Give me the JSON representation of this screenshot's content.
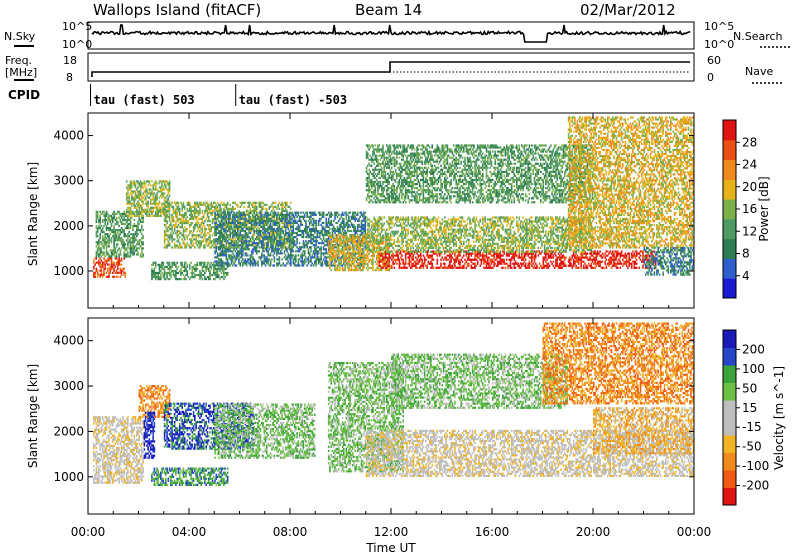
{
  "header": {
    "station": "Wallops Island (fitACF)",
    "beam": "Beam 14",
    "date": "02/Mar/2012"
  },
  "top_panel": {
    "left_label": "N.Sky",
    "right_label": "N.Search",
    "ytick_high": "10^5",
    "ytick_low": "10^0"
  },
  "freq_panel": {
    "left_label": "Freq.",
    "left_unit": "[MHz]",
    "left_ticks": [
      "18",
      "8"
    ],
    "right_label": "Nave",
    "right_ticks": [
      "60",
      "0"
    ]
  },
  "cpid_panel": {
    "label": "CPID",
    "segments": [
      {
        "text": "tau (fast) 503",
        "start_hour": 0.1
      },
      {
        "text": "tau (fast) -503",
        "start_hour": 5.85
      }
    ]
  },
  "colors": {
    "power_scale": [
      "#1a1ad0",
      "#2f5fcc",
      "#2d7d52",
      "#4f9a63",
      "#7bb04a",
      "#e5b319",
      "#f08a1c",
      "#ec4f14",
      "#e01212"
    ],
    "velocity_scale": [
      "#e01212",
      "#f05a14",
      "#f08a1c",
      "#f0b323",
      "#bebebe",
      "#bebebe",
      "#6cc043",
      "#3ca23a",
      "#2546c8",
      "#1a1ab8"
    ]
  },
  "chart_data": [
    {
      "type": "heatmap",
      "title": "",
      "xlabel": "Time UT",
      "ylabel": "Slant Range [km]",
      "x_tick_labels": [
        "00:00",
        "04:00",
        "08:00",
        "12:00",
        "16:00",
        "20:00",
        "00:00"
      ],
      "x_ticks_hours": [
        0,
        4,
        8,
        12,
        16,
        20,
        24
      ],
      "y_tick_labels": [
        "1000",
        "2000",
        "3000",
        "4000"
      ],
      "y_ticks_km": [
        1000,
        2000,
        3000,
        4000
      ],
      "xlim": [
        0,
        24
      ],
      "ylim": [
        180,
        4500
      ],
      "colorbar": {
        "label": "Power [dB]",
        "tick_labels": [
          "4",
          "8",
          "12",
          "16",
          "20",
          "24",
          "28"
        ],
        "range": [
          0,
          30
        ]
      },
      "echo_regions": [
        {
          "h0": 0.2,
          "h1": 1.5,
          "km0": 850,
          "km1": 1300,
          "level": 7
        },
        {
          "h0": 0.3,
          "h1": 2.2,
          "km0": 1300,
          "km1": 2300,
          "level": 3
        },
        {
          "h0": 1.5,
          "h1": 3.2,
          "km0": 2200,
          "km1": 3000,
          "level": 4
        },
        {
          "h0": 2.5,
          "h1": 5.5,
          "km0": 800,
          "km1": 1200,
          "level": 3
        },
        {
          "h0": 3.0,
          "h1": 8.0,
          "km0": 1500,
          "km1": 2500,
          "level": 4
        },
        {
          "h0": 5.0,
          "h1": 11.0,
          "km0": 1100,
          "km1": 2300,
          "level": 2
        },
        {
          "h0": 9.5,
          "h1": 12.0,
          "km0": 1000,
          "km1": 1800,
          "level": 5
        },
        {
          "h0": 11.5,
          "h1": 22.5,
          "km0": 1050,
          "km1": 1450,
          "level": 8
        },
        {
          "h0": 11.0,
          "h1": 20.0,
          "km0": 1400,
          "km1": 2200,
          "level": 4
        },
        {
          "h0": 11.0,
          "h1": 20.0,
          "km0": 2500,
          "km1": 3800,
          "level": 3
        },
        {
          "h0": 19.0,
          "h1": 24.0,
          "km0": 1500,
          "km1": 4400,
          "level": 5
        },
        {
          "h0": 22.0,
          "h1": 24.0,
          "km0": 900,
          "km1": 1500,
          "level": 2
        }
      ]
    },
    {
      "type": "heatmap",
      "title": "",
      "xlabel": "Time UT",
      "ylabel": "Slant Range [km]",
      "x_tick_labels": [
        "00:00",
        "04:00",
        "08:00",
        "12:00",
        "16:00",
        "20:00",
        "00:00"
      ],
      "x_ticks_hours": [
        0,
        4,
        8,
        12,
        16,
        20,
        24
      ],
      "y_tick_labels": [
        "1000",
        "2000",
        "3000",
        "4000"
      ],
      "y_ticks_km": [
        1000,
        2000,
        3000,
        4000
      ],
      "xlim": [
        0,
        24
      ],
      "ylim": [
        180,
        4500
      ],
      "colorbar": {
        "label": "Velocity [m s^-1]",
        "tick_labels": [
          "200",
          "100",
          "50",
          "15",
          "-15",
          "-50",
          "-100",
          "-200"
        ],
        "range": [
          -250,
          250
        ]
      },
      "echo_regions": [
        {
          "h0": 0.2,
          "h1": 2.2,
          "km0": 850,
          "km1": 2300,
          "level": 4
        },
        {
          "h0": 2.0,
          "h1": 3.2,
          "km0": 2300,
          "km1": 3000,
          "level": 2
        },
        {
          "h0": 2.2,
          "h1": 2.6,
          "km0": 1400,
          "km1": 2400,
          "level": 9
        },
        {
          "h0": 2.5,
          "h1": 5.5,
          "km0": 800,
          "km1": 1200,
          "level": 7
        },
        {
          "h0": 3.0,
          "h1": 6.5,
          "km0": 1600,
          "km1": 2600,
          "level": 8
        },
        {
          "h0": 5.0,
          "h1": 9.0,
          "km0": 1400,
          "km1": 2600,
          "level": 6
        },
        {
          "h0": 9.5,
          "h1": 12.5,
          "km0": 1100,
          "km1": 3500,
          "level": 6
        },
        {
          "h0": 11.0,
          "h1": 24.0,
          "km0": 1000,
          "km1": 2000,
          "level": 4
        },
        {
          "h0": 12.0,
          "h1": 19.0,
          "km0": 2500,
          "km1": 3700,
          "level": 6
        },
        {
          "h0": 18.0,
          "h1": 24.0,
          "km0": 2600,
          "km1": 4400,
          "level": 2
        },
        {
          "h0": 20.0,
          "h1": 24.0,
          "km0": 1500,
          "km1": 2500,
          "level": 3
        }
      ]
    }
  ]
}
